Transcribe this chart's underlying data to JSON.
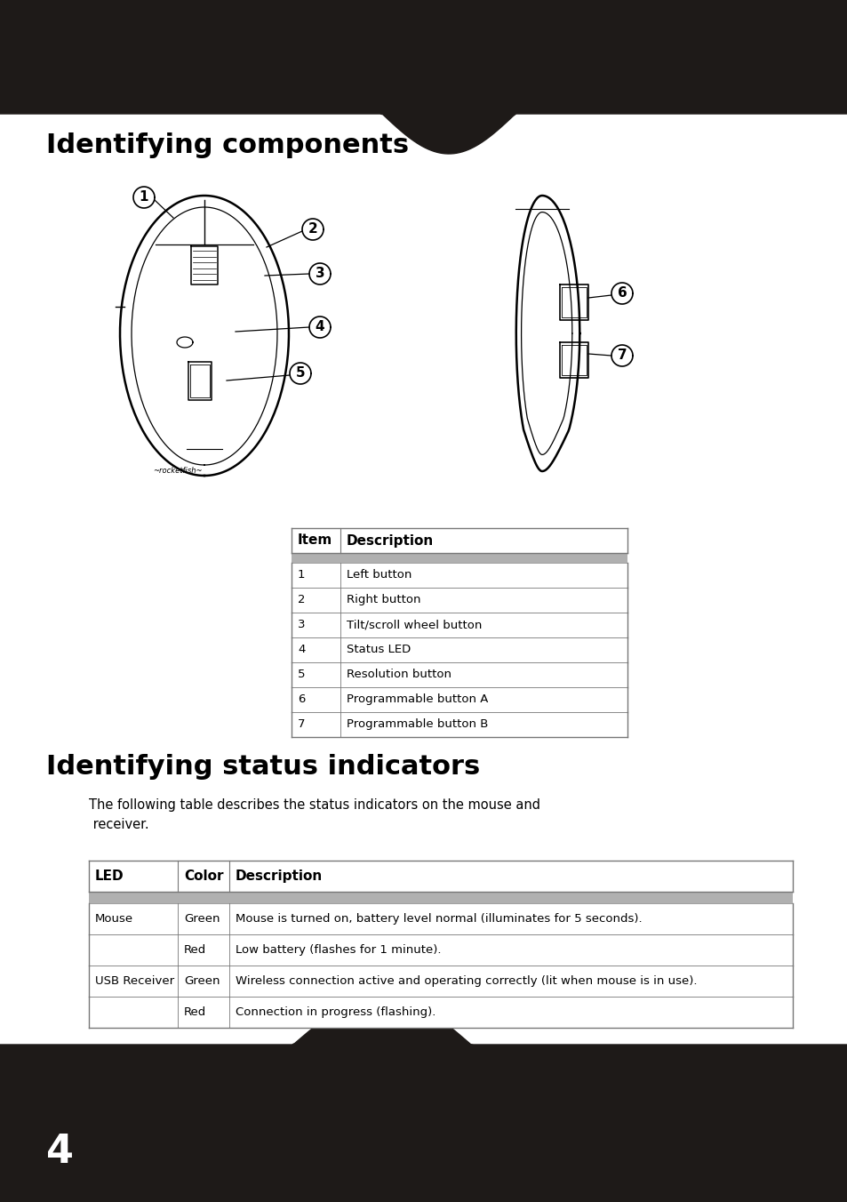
{
  "title1": "Identifying components",
  "title2": "Identifying status indicators",
  "subtitle2": "The following table describes the status indicators on the mouse and\n receiver.",
  "bg_dark": "#1e1a18",
  "bg_white": "#ffffff",
  "page_number": "4",
  "table1_headers": [
    "Item",
    "Description"
  ],
  "table1_rows": [
    [
      "1",
      "Left button"
    ],
    [
      "2",
      "Right button"
    ],
    [
      "3",
      "Tilt/scroll wheel button"
    ],
    [
      "4",
      "Status LED"
    ],
    [
      "5",
      "Resolution button"
    ],
    [
      "6",
      "Programmable button A"
    ],
    [
      "7",
      "Programmable button B"
    ]
  ],
  "table2_headers": [
    "LED",
    "Color",
    "Description"
  ],
  "table2_rows": [
    [
      "Mouse",
      "Green",
      "Mouse is turned on, battery level normal (illuminates for 5 seconds)."
    ],
    [
      "",
      "Red",
      "Low battery (flashes for 1 minute)."
    ],
    [
      "USB Receiver",
      "Green",
      "Wireless connection active and operating correctly (lit when mouse is in use)."
    ],
    [
      "",
      "Red",
      "Connection in progress (flashing)."
    ]
  ],
  "header_gray": "#b0b0b0",
  "table_border": "#777777",
  "title_fontsize": 22,
  "body_fontsize": 9.5,
  "header_fontsize": 11
}
